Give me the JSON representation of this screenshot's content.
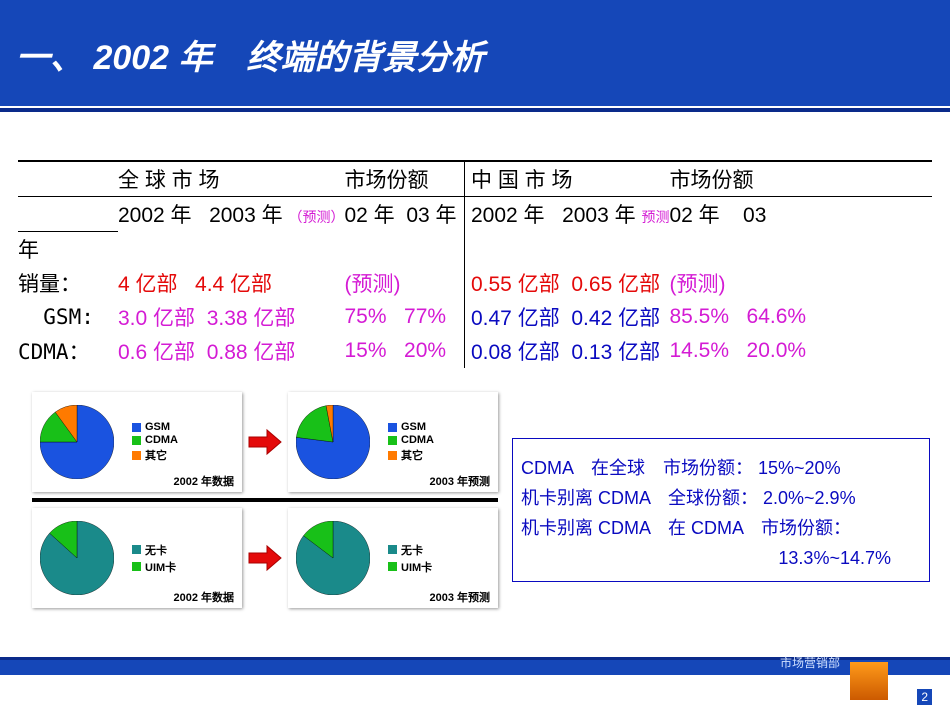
{
  "slide": {
    "title": "一、 2002 年　终端的背景分析",
    "footer_dept": "市场营销部",
    "page_number": "2"
  },
  "palette": {
    "header_bg": "#1547b8",
    "accent_orange": "#ff7a00",
    "text_red": "#e40a0a",
    "text_magenta": "#d41bd4",
    "text_blue": "#0a0ac0",
    "pie_gsm": "#1a53e0",
    "pie_cdma": "#18c018",
    "pie_other": "#ff7a00",
    "pie_nocard": "#1a8a8a",
    "pie_uim": "#18c018"
  },
  "table": {
    "hdr_global": "全 球 市 场",
    "hdr_gshare": "市场份额",
    "hdr_china": "中 国 市 场",
    "hdr_cshare": "市场份额",
    "sub_2002": "2002 年",
    "sub_2003": "2003 年",
    "sub_pred_small": "（预测）",
    "sub_02": "02 年",
    "sub_03": "03 年",
    "sub_c2002": "2002 年",
    "sub_c2003": "2003 年",
    "sub_c_pred": "预测",
    "sub_c02": "02 年",
    "sub_c03": "03",
    "year_tail": "年",
    "row_sales": "销量：",
    "row_gsm": "  GSM:",
    "row_cdma": "CDMA：",
    "sales_g1": "4 亿部",
    "sales_g2": "4.4 亿部",
    "sales_note": "(预测)",
    "sales_c1": "0.55 亿部",
    "sales_c2": "0.65 亿部",
    "gsm_g1": "3.0 亿部",
    "gsm_g2": "3.38 亿部",
    "gsm_s1": "75%",
    "gsm_s2": "77%",
    "gsm_c1": "0.47 亿部",
    "gsm_c2": "0.42 亿部",
    "gsm_cs1": "85.5%",
    "gsm_cs2": "64.6%",
    "cdma_g1": "0.6 亿部",
    "cdma_g2": "0.88 亿部",
    "cdma_s1": "15%",
    "cdma_s2": "20%",
    "cdma_c1": "0.08 亿部",
    "cdma_c2": "0.13 亿部",
    "cdma_cs1": "14.5%",
    "cdma_cs2": "20.0%"
  },
  "charts": {
    "row1": {
      "legend": {
        "gsm": "GSM",
        "cdma": "CDMA",
        "other": "其它"
      },
      "left": {
        "caption": "2002 年数据",
        "slices": [
          {
            "label": "GSM",
            "value": 75,
            "color": "#1a53e0"
          },
          {
            "label": "CDMA",
            "value": 15,
            "color": "#18c018"
          },
          {
            "label": "其它",
            "value": 10,
            "color": "#ff7a00"
          }
        ]
      },
      "right": {
        "caption": "2003 年预测",
        "slices": [
          {
            "label": "GSM",
            "value": 77,
            "color": "#1a53e0"
          },
          {
            "label": "CDMA",
            "value": 20,
            "color": "#18c018"
          },
          {
            "label": "其它",
            "value": 3,
            "color": "#ff7a00"
          }
        ]
      }
    },
    "row2": {
      "legend": {
        "nocard": "无卡",
        "uim": "UIM卡"
      },
      "left": {
        "caption": "2002 年数据",
        "slices": [
          {
            "label": "无卡",
            "value": 86.7,
            "color": "#1a8a8a"
          },
          {
            "label": "UIM卡",
            "value": 13.3,
            "color": "#18c018"
          }
        ]
      },
      "right": {
        "caption": "2003 年预测",
        "slices": [
          {
            "label": "无卡",
            "value": 85.3,
            "color": "#1a8a8a"
          },
          {
            "label": "UIM卡",
            "value": 14.7,
            "color": "#18c018"
          }
        ]
      }
    },
    "arrow_color": "#e40a0a"
  },
  "infobox": {
    "line1": "CDMA　在全球　市场份额： 15%~20%",
    "line2": "机卡别离 CDMA　全球份额： 2.0%~2.9%",
    "line3": "机卡别离 CDMA　在 CDMA　市场份额：",
    "line4": "13.3%~14.7%"
  }
}
